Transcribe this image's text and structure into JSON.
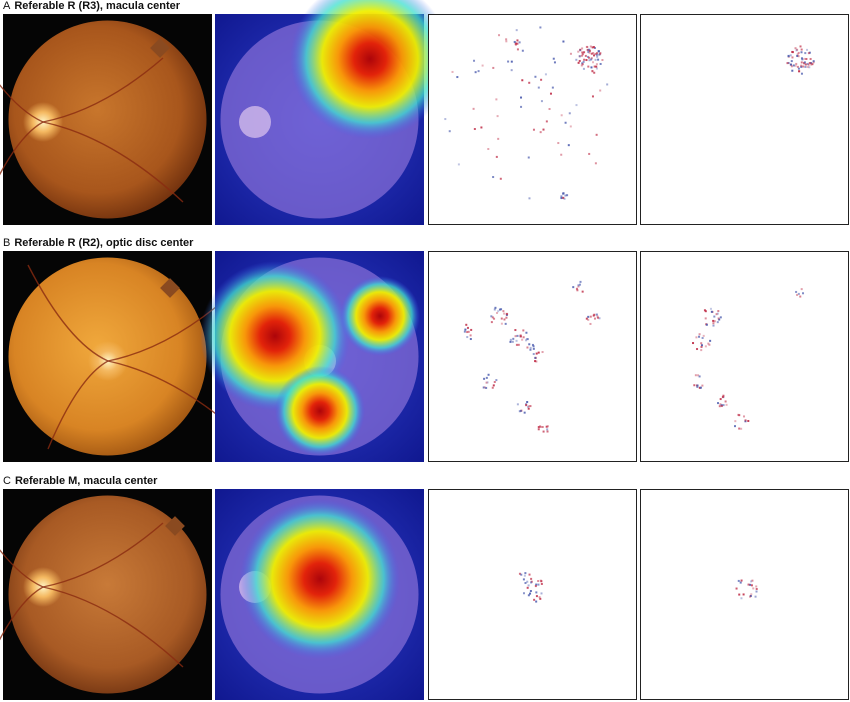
{
  "panels": [
    {
      "letter": "A",
      "title": "Referable R (R3), macula center"
    },
    {
      "letter": "B",
      "title": "Referable R (R2), optic disc center"
    },
    {
      "letter": "C",
      "title": "Referable M, macula center"
    }
  ]
}
